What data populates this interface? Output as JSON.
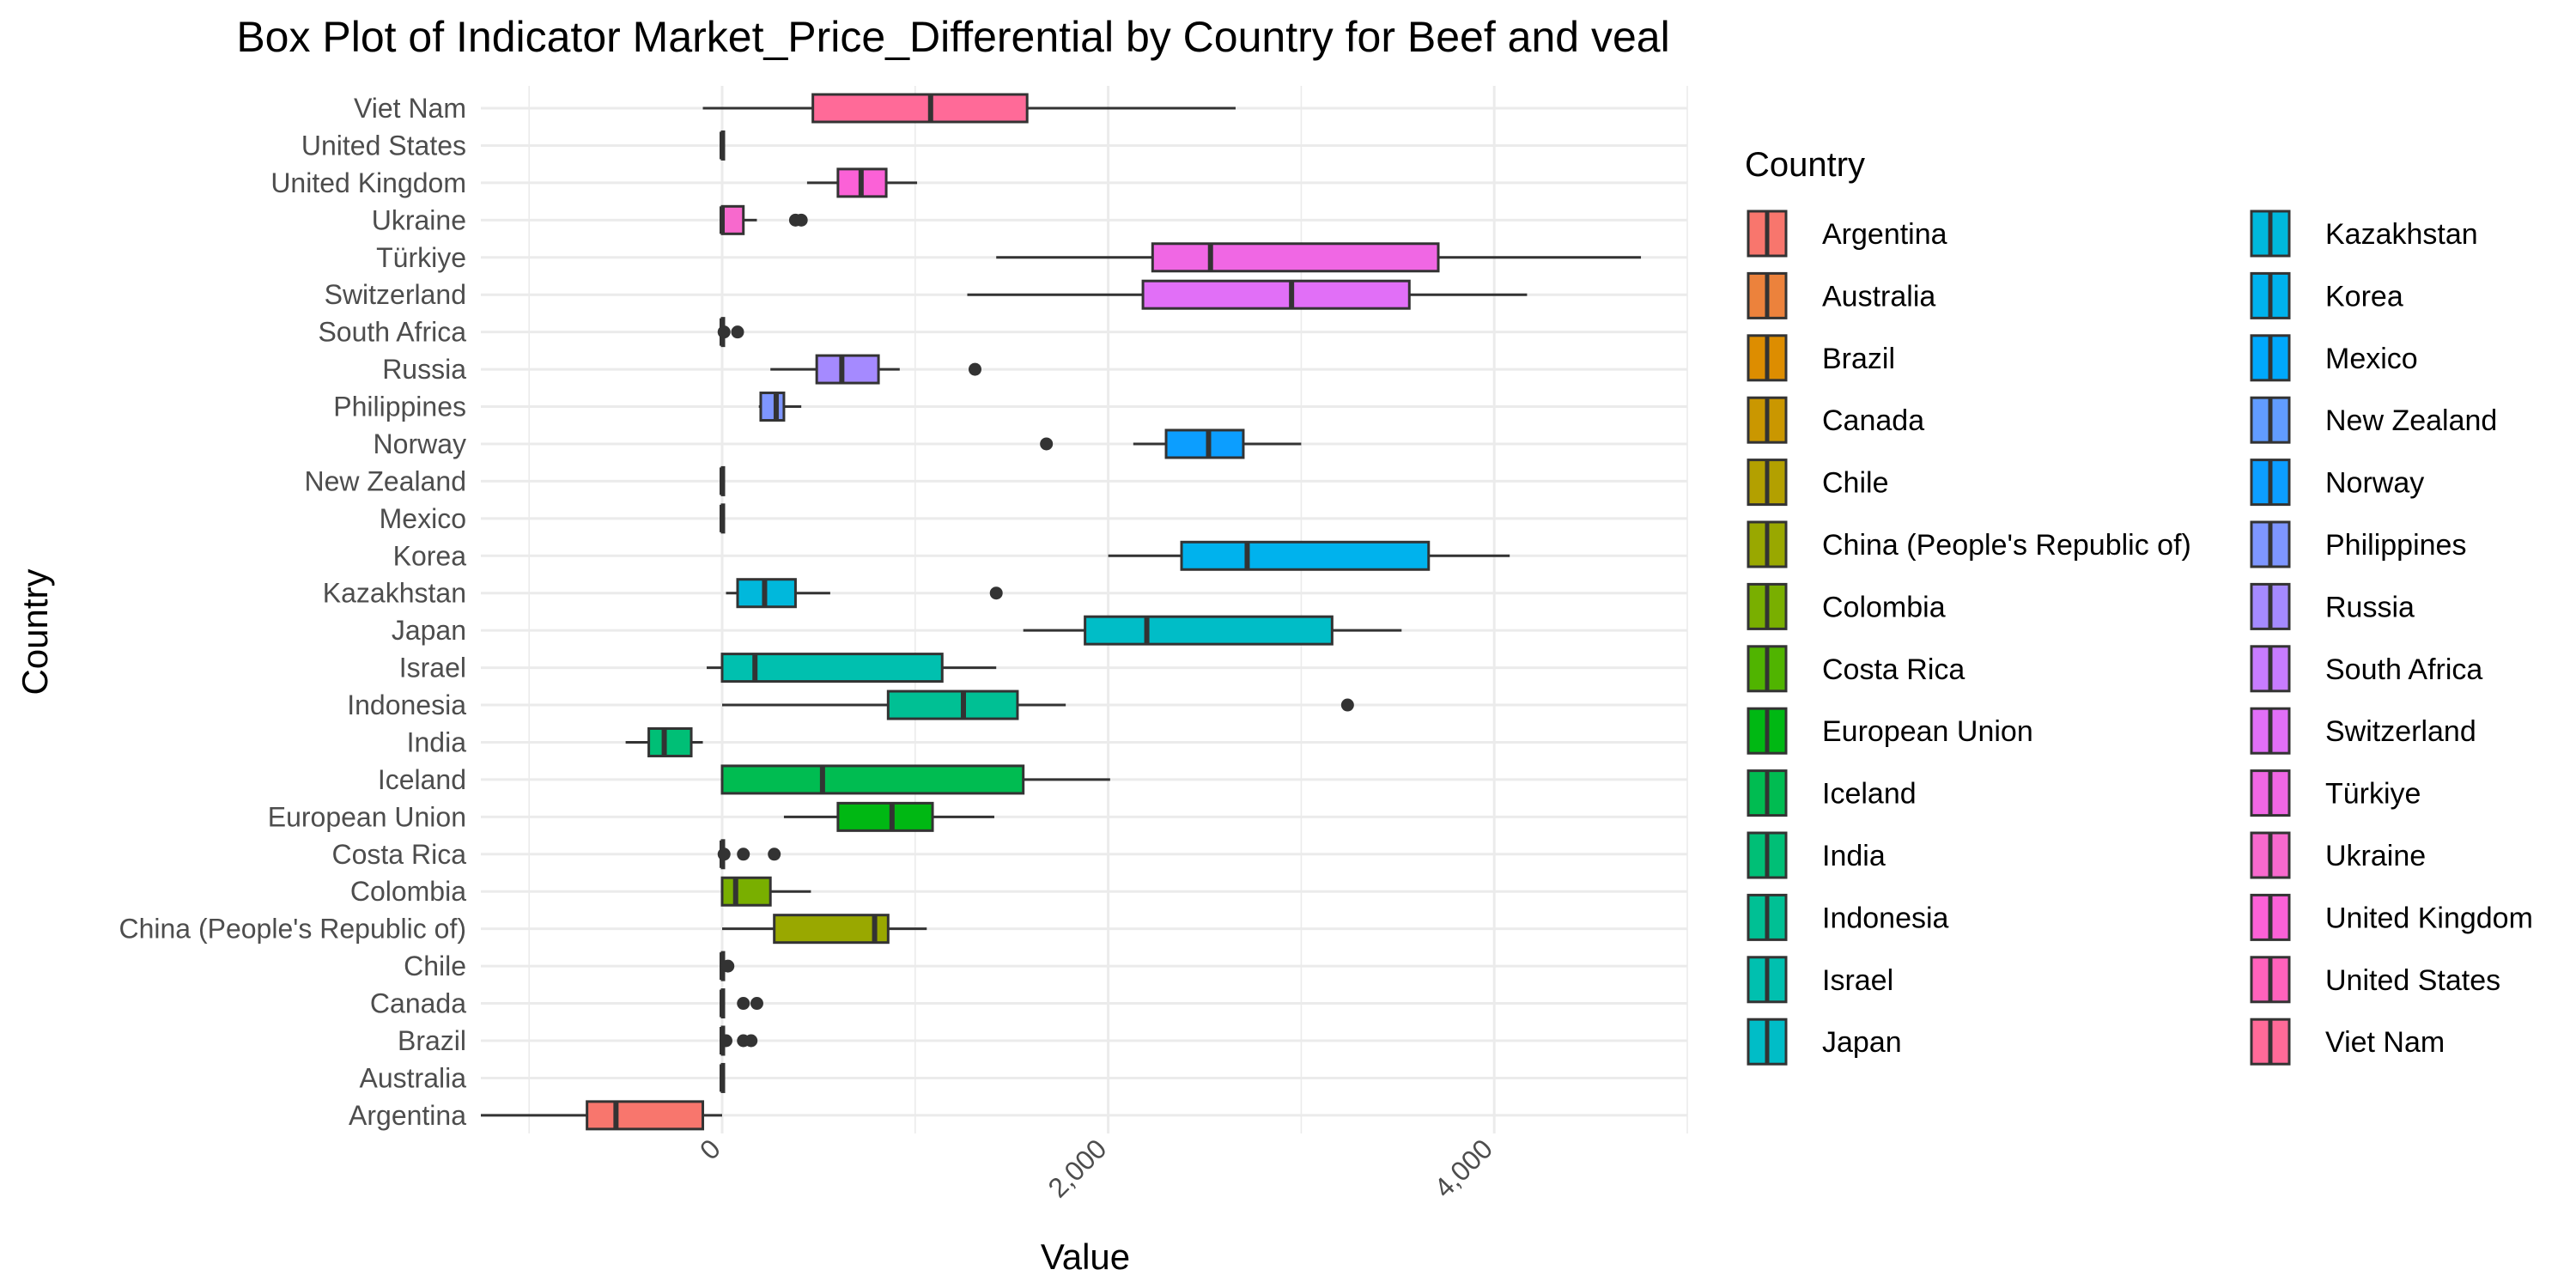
{
  "chart_data": {
    "type": "box",
    "title": "Box Plot of Indicator Market_Price_Differential by Country for Beef and veal",
    "xlabel": "Value",
    "ylabel": "Country",
    "xlim": [
      -1250,
      5000
    ],
    "x_ticks": [
      0,
      2000,
      4000
    ],
    "x_tick_labels": [
      "0",
      "2,000",
      "4,000"
    ],
    "x_tick_label_rotation": -45,
    "grid": true,
    "legend": {
      "title": "Country",
      "position": "right",
      "columns": 2
    },
    "categories": [
      "Argentina",
      "Australia",
      "Brazil",
      "Canada",
      "Chile",
      "China (People's Republic of)",
      "Colombia",
      "Costa Rica",
      "European Union",
      "Iceland",
      "India",
      "Indonesia",
      "Israel",
      "Japan",
      "Kazakhstan",
      "Korea",
      "Mexico",
      "New Zealand",
      "Norway",
      "Philippines",
      "Russia",
      "South Africa",
      "Switzerland",
      "Türkiye",
      "Ukraine",
      "United Kingdom",
      "United States",
      "Viet Nam"
    ],
    "colors": [
      "#F8766D",
      "#EC823C",
      "#DD8D00",
      "#CA9700",
      "#B3A000",
      "#99A800",
      "#79AF00",
      "#50B400",
      "#00B813",
      "#00BC51",
      "#00BF76",
      "#00C094",
      "#00C0AF",
      "#00BDC7",
      "#00B8DC",
      "#00B2ED",
      "#00A8FC",
      "#619CFF",
      "#0C9EFF",
      "#7E96FF",
      "#A58AFF",
      "#C77CFF",
      "#E16FF7",
      "#F067E4",
      "#F769CD",
      "#FB61D7",
      "#FF62BC",
      "#FF6A98"
    ],
    "boxes": [
      {
        "category": "Argentina",
        "whisker_low": -1250,
        "q1": -700,
        "median": -550,
        "q3": -100,
        "whisker_high": 0,
        "outliers": []
      },
      {
        "category": "Australia",
        "whisker_low": 0,
        "q1": 0,
        "median": 0,
        "q3": 0,
        "whisker_high": 0,
        "outliers": []
      },
      {
        "category": "Brazil",
        "whisker_low": 0,
        "q1": 0,
        "median": 0,
        "q3": 0,
        "whisker_high": 0,
        "outliers": [
          20,
          110,
          150
        ]
      },
      {
        "category": "Canada",
        "whisker_low": 0,
        "q1": 0,
        "median": 0,
        "q3": 0,
        "whisker_high": 0,
        "outliers": [
          110,
          180
        ]
      },
      {
        "category": "Chile",
        "whisker_low": 0,
        "q1": 0,
        "median": 0,
        "q3": 0,
        "whisker_high": 0,
        "outliers": [
          30
        ]
      },
      {
        "category": "China (People's Republic of)",
        "whisker_low": 0,
        "q1": 270,
        "median": 790,
        "q3": 860,
        "whisker_high": 1060,
        "outliers": []
      },
      {
        "category": "Colombia",
        "whisker_low": 0,
        "q1": 0,
        "median": 70,
        "q3": 250,
        "whisker_high": 460,
        "outliers": []
      },
      {
        "category": "Costa Rica",
        "whisker_low": 0,
        "q1": 0,
        "median": 0,
        "q3": 0,
        "whisker_high": 0,
        "outliers": [
          10,
          110,
          270
        ]
      },
      {
        "category": "European Union",
        "whisker_low": 320,
        "q1": 600,
        "median": 880,
        "q3": 1090,
        "whisker_high": 1410,
        "outliers": []
      },
      {
        "category": "Iceland",
        "whisker_low": 0,
        "q1": 0,
        "median": 520,
        "q3": 1560,
        "whisker_high": 2010,
        "outliers": []
      },
      {
        "category": "India",
        "whisker_low": -500,
        "q1": -380,
        "median": -300,
        "q3": -160,
        "whisker_high": -100,
        "outliers": []
      },
      {
        "category": "Indonesia",
        "whisker_low": 0,
        "q1": 860,
        "median": 1250,
        "q3": 1530,
        "whisker_high": 1780,
        "outliers": [
          3240
        ]
      },
      {
        "category": "Israel",
        "whisker_low": -80,
        "q1": 0,
        "median": 170,
        "q3": 1140,
        "whisker_high": 1420,
        "outliers": []
      },
      {
        "category": "Japan",
        "whisker_low": 1560,
        "q1": 1880,
        "median": 2200,
        "q3": 3160,
        "whisker_high": 3520,
        "outliers": []
      },
      {
        "category": "Kazakhstan",
        "whisker_low": 20,
        "q1": 80,
        "median": 220,
        "q3": 380,
        "whisker_high": 560,
        "outliers": [
          1420
        ]
      },
      {
        "category": "Korea",
        "whisker_low": 2000,
        "q1": 2380,
        "median": 2720,
        "q3": 3660,
        "whisker_high": 4080,
        "outliers": []
      },
      {
        "category": "Mexico",
        "whisker_low": 0,
        "q1": 0,
        "median": 0,
        "q3": 0,
        "whisker_high": 0,
        "outliers": []
      },
      {
        "category": "New Zealand",
        "whisker_low": 0,
        "q1": 0,
        "median": 0,
        "q3": 0,
        "whisker_high": 0,
        "outliers": []
      },
      {
        "category": "Norway",
        "whisker_low": 2130,
        "q1": 2300,
        "median": 2520,
        "q3": 2700,
        "whisker_high": 3000,
        "outliers": [
          1680
        ]
      },
      {
        "category": "Philippines",
        "whisker_low": 190,
        "q1": 200,
        "median": 280,
        "q3": 320,
        "whisker_high": 410,
        "outliers": []
      },
      {
        "category": "Russia",
        "whisker_low": 250,
        "q1": 490,
        "median": 620,
        "q3": 810,
        "whisker_high": 920,
        "outliers": [
          1310
        ]
      },
      {
        "category": "South Africa",
        "whisker_low": 0,
        "q1": 0,
        "median": 0,
        "q3": 0,
        "whisker_high": 0,
        "outliers": [
          10,
          80
        ]
      },
      {
        "category": "Switzerland",
        "whisker_low": 1270,
        "q1": 2180,
        "median": 2950,
        "q3": 3560,
        "whisker_high": 4170,
        "outliers": []
      },
      {
        "category": "Türkiye",
        "whisker_low": 1420,
        "q1": 2230,
        "median": 2530,
        "q3": 3710,
        "whisker_high": 4760,
        "outliers": []
      },
      {
        "category": "Ukraine",
        "whisker_low": 0,
        "q1": 0,
        "median": 0,
        "q3": 110,
        "whisker_high": 180,
        "outliers": [
          380,
          410
        ]
      },
      {
        "category": "United Kingdom",
        "whisker_low": 440,
        "q1": 600,
        "median": 720,
        "q3": 850,
        "whisker_high": 1010,
        "outliers": []
      },
      {
        "category": "United States",
        "whisker_low": 0,
        "q1": 0,
        "median": 0,
        "q3": 0,
        "whisker_high": 0,
        "outliers": []
      },
      {
        "category": "Viet Nam",
        "whisker_low": -100,
        "q1": 470,
        "median": 1080,
        "q3": 1580,
        "whisker_high": 2660,
        "outliers": []
      }
    ]
  }
}
